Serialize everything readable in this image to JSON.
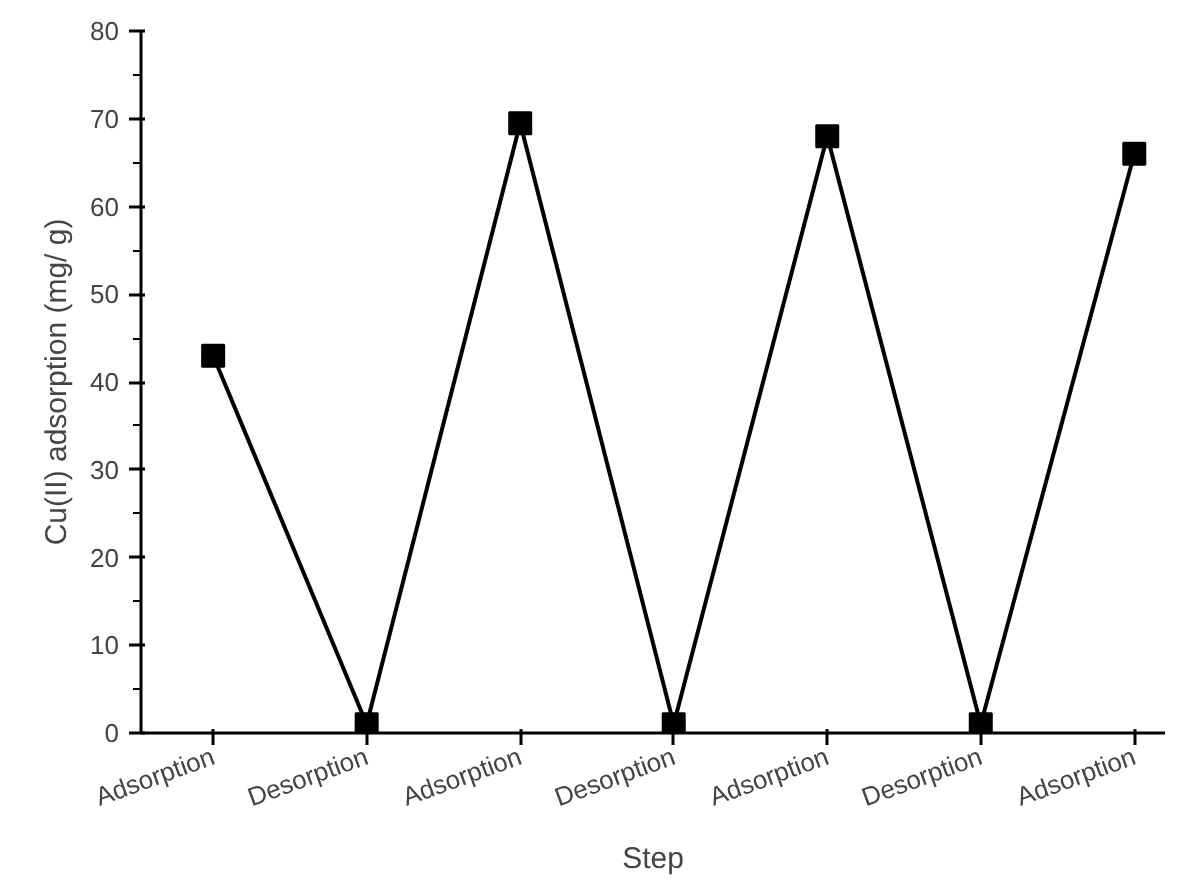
{
  "chart_data": {
    "type": "line",
    "xlabel": "Step",
    "ylabel": "Cu(II) adsorption (mg/ g)",
    "categories": [
      "Adsorption",
      "Desorption",
      "Adsorption",
      "Desorption",
      "Adsorption",
      "Desorption",
      "Adsorption"
    ],
    "series": [
      {
        "color": "#000000",
        "values": [
          43,
          1,
          69.5,
          1,
          68,
          1,
          66
        ]
      }
    ],
    "ylim": [
      0,
      80
    ],
    "yticks": [
      0,
      10,
      20,
      30,
      40,
      50,
      60,
      70,
      80
    ],
    "marker": "square",
    "line_style": "solid",
    "grid": false
  }
}
